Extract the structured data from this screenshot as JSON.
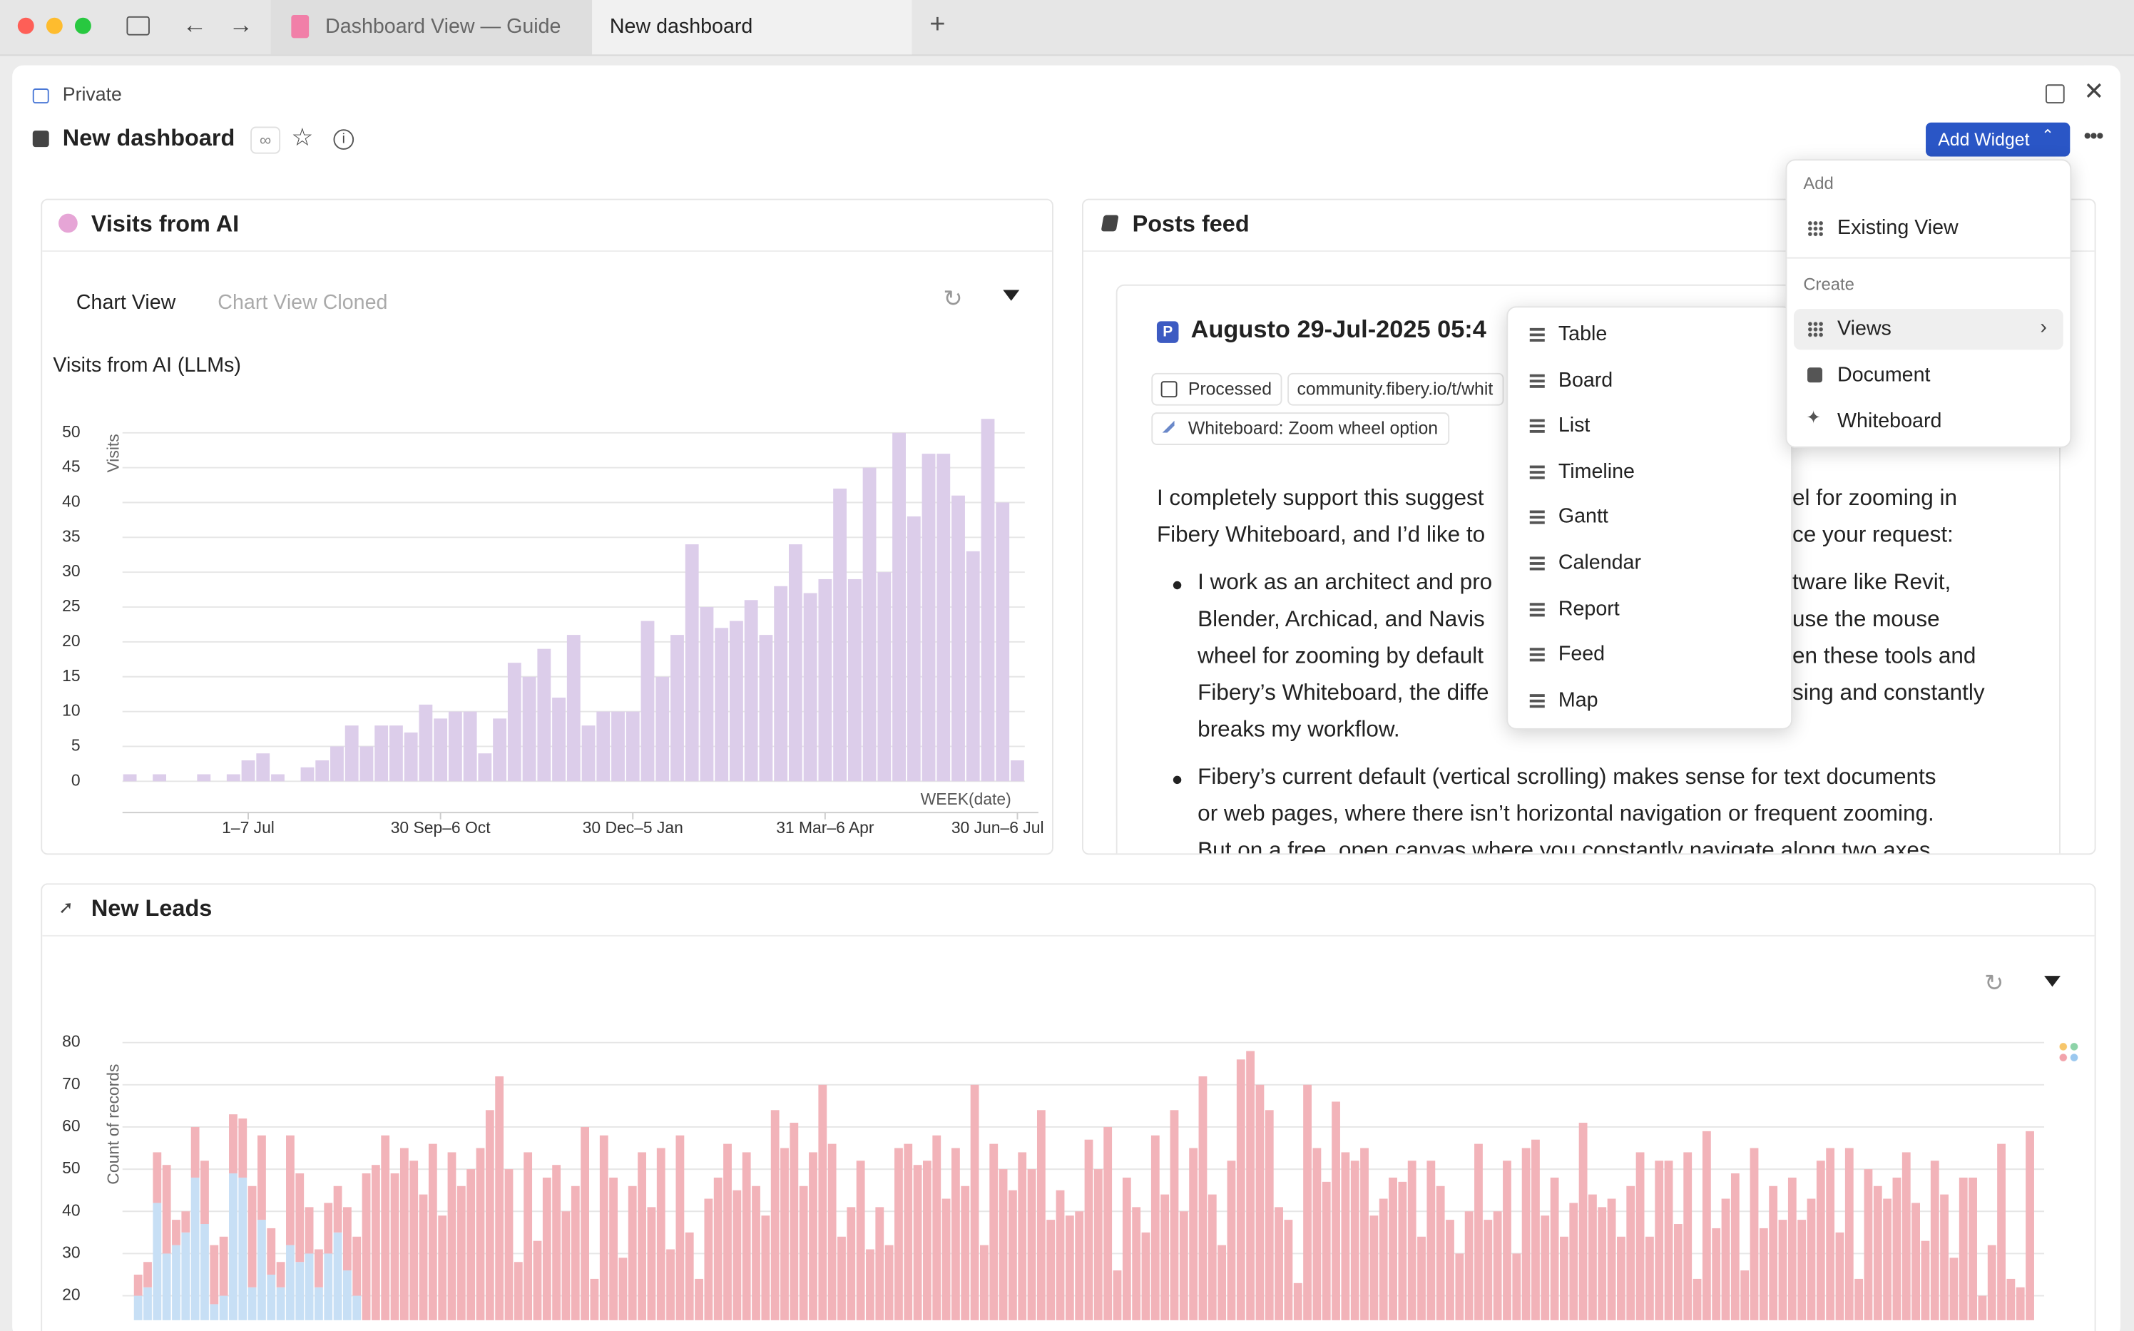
{
  "browser": {
    "tabs": [
      "Dashboard View — Guide",
      "New dashboard"
    ]
  },
  "page": {
    "privacy": "Private",
    "title": "New dashboard",
    "add_widget": "Add Widget"
  },
  "widgets": [
    {
      "title": "Visits from AI",
      "views": [
        "Chart View",
        "Chart View Cloned"
      ],
      "chart_data": {
        "type": "bar",
        "title": "Visits from AI (LLMs)",
        "x_label": "WEEK(date)",
        "y_label": "Visits",
        "color": "#dccdea",
        "grid": true,
        "categories": [
          null,
          null,
          null,
          null,
          null,
          null,
          null,
          null,
          "1–7 Jul",
          null,
          null,
          null,
          null,
          null,
          null,
          null,
          null,
          null,
          null,
          null,
          null,
          "30 Sep–6 Oct",
          null,
          null,
          null,
          null,
          null,
          null,
          null,
          null,
          null,
          null,
          null,
          null,
          "30 Dec–5 Jan",
          null,
          null,
          null,
          null,
          null,
          null,
          null,
          null,
          null,
          null,
          null,
          null,
          "31 Mar–6 Apr",
          null,
          null,
          null,
          null,
          null,
          null,
          null,
          null,
          null,
          null,
          null,
          null,
          "30 Jun–6 Jul"
        ],
        "values": [
          1,
          0,
          1,
          0,
          0,
          1,
          0,
          1,
          3,
          4,
          1,
          0,
          2,
          3,
          5,
          8,
          5,
          8,
          8,
          7,
          11,
          9,
          10,
          10,
          4,
          9,
          17,
          15,
          19,
          12,
          21,
          8,
          10,
          10,
          10,
          23,
          15,
          21,
          34,
          25,
          22,
          23,
          26,
          21,
          28,
          34,
          27,
          29,
          42,
          29,
          45,
          30,
          50,
          38,
          47,
          47,
          41,
          33,
          52,
          40,
          3
        ],
        "ylim": [
          0,
          50
        ],
        "yticks": [
          0,
          5,
          10,
          15,
          20,
          25,
          30,
          35,
          40,
          45,
          50
        ]
      }
    },
    {
      "title": "Posts feed",
      "post": {
        "badge": "P",
        "title": "Augusto 29-Jul-2025 05:4",
        "tags": [
          "Processed",
          "community.fibery.io/t/whit",
          "Whiteboard: Zoom wheel option"
        ],
        "lines": [
          [
            "I completely support this suggest",
            "el for zooming in"
          ],
          [
            "Fibery Whiteboard, and I’d like to",
            "ce your request:"
          ],
          [
            "I work as an architect and pro",
            "tware like Revit,"
          ],
          [
            "Blender, Archicad, and Navis",
            "use the mouse"
          ],
          [
            "wheel for zooming by default",
            "en these tools and"
          ],
          [
            "Fibery’s Whiteboard, the diffe",
            "sing and constantly"
          ],
          [
            "breaks my workflow."
          ],
          [
            "Fibery’s current default (vertical scrolling) makes sense for text documents"
          ],
          [
            "or web pages, where there isn’t horizontal navigation or frequent zooming."
          ],
          [
            "But on a free, open canvas where you constantly navigate along two axes,"
          ]
        ]
      }
    },
    {
      "title": "New Leads",
      "chart_data": {
        "type": "stacked_bar",
        "y_label": "Count of records",
        "grid": true,
        "ylim": [
          0,
          80
        ],
        "yticks": [
          20,
          30,
          40,
          50,
          60,
          70,
          80
        ],
        "series": [
          {
            "color": "#c7dff5",
            "values": [
              20,
              22,
              42,
              30,
              32,
              35,
              48,
              37,
              18,
              20,
              49,
              48,
              22,
              38,
              25,
              22,
              32,
              28,
              30,
              22,
              30,
              35,
              26,
              20,
              0,
              0,
              0,
              0,
              0,
              0,
              0,
              0,
              0,
              0,
              0,
              0,
              0,
              0,
              0,
              0,
              0,
              0,
              0,
              0,
              0,
              0,
              0,
              0,
              0,
              0,
              0,
              0,
              0,
              0,
              0,
              0,
              0,
              0,
              0,
              0,
              0,
              0,
              0,
              0,
              0,
              0,
              0,
              0,
              0,
              0,
              0,
              0,
              0,
              0,
              0,
              0,
              0,
              0,
              0,
              0,
              0,
              0,
              0,
              0,
              0,
              0,
              0,
              0,
              0,
              0,
              0,
              0,
              0,
              0,
              0,
              0,
              0,
              0,
              0,
              0,
              0,
              0,
              0,
              0,
              0,
              0,
              0,
              0,
              0,
              0,
              0,
              0,
              0,
              0,
              0,
              0,
              0,
              0,
              0,
              0,
              0,
              0,
              0,
              0,
              0,
              0,
              0,
              0,
              0,
              0,
              0,
              0,
              0,
              0,
              0,
              0,
              0,
              0,
              0,
              0,
              0,
              0,
              0,
              0,
              0,
              0,
              0,
              0,
              0,
              0,
              0,
              0,
              0,
              0,
              0,
              0,
              0,
              0,
              0,
              0,
              0,
              0,
              0,
              0,
              0,
              0,
              0,
              0,
              0,
              0,
              0,
              0,
              0,
              0,
              0,
              0,
              0,
              0,
              0,
              0,
              0,
              0,
              0,
              0,
              0,
              0,
              0,
              0,
              0,
              0,
              0,
              0,
              0,
              0,
              0,
              0,
              0,
              0,
              0,
              0
            ]
          },
          {
            "color": "#f2b3b9",
            "values": [
              5,
              6,
              12,
              21,
              6,
              5,
              12,
              15,
              14,
              14,
              14,
              14,
              24,
              20,
              11,
              6,
              26,
              21,
              11,
              9,
              12,
              11,
              15,
              14,
              49,
              51,
              58,
              49,
              55,
              52,
              44,
              56,
              39,
              54,
              46,
              50,
              55,
              64,
              72,
              50,
              28,
              54,
              33,
              48,
              51,
              40,
              46,
              60,
              24,
              58,
              48,
              29,
              46,
              54,
              41,
              55,
              31,
              58,
              35,
              24,
              43,
              48,
              56,
              45,
              54,
              46,
              39,
              64,
              55,
              61,
              46,
              54,
              70,
              56,
              34,
              41,
              52,
              31,
              41,
              32,
              55,
              56,
              51,
              52,
              58,
              43,
              55,
              46,
              70,
              32,
              56,
              50,
              45,
              54,
              50,
              64,
              38,
              45,
              39,
              40,
              57,
              50,
              60,
              26,
              48,
              41,
              35,
              58,
              44,
              64,
              40,
              55,
              72,
              44,
              32,
              52,
              76,
              78,
              70,
              64,
              41,
              38,
              23,
              70,
              55,
              47,
              66,
              54,
              52,
              55,
              39,
              43,
              48,
              47,
              52,
              34,
              52,
              46,
              38,
              30,
              40,
              56,
              38,
              40,
              52,
              30,
              55,
              57,
              39,
              48,
              34,
              42,
              61,
              44,
              41,
              43,
              34,
              46,
              54,
              34,
              52,
              52,
              37,
              54,
              24,
              59,
              36,
              43,
              49,
              26,
              55,
              36,
              46,
              38,
              48,
              38,
              43,
              52,
              55,
              35,
              55,
              24,
              50,
              46,
              43,
              48,
              54,
              42,
              33,
              52,
              44,
              29,
              48,
              48,
              20,
              32,
              56,
              24,
              22,
              59
            ]
          }
        ]
      }
    }
  ],
  "add_menu": {
    "add_label": "Add",
    "existing": "Existing View",
    "create_label": "Create",
    "create": [
      "Views",
      "Document",
      "Whiteboard"
    ]
  },
  "views_menu": [
    "Table",
    "Board",
    "List",
    "Timeline",
    "Gantt",
    "Calendar",
    "Report",
    "Feed",
    "Map"
  ]
}
